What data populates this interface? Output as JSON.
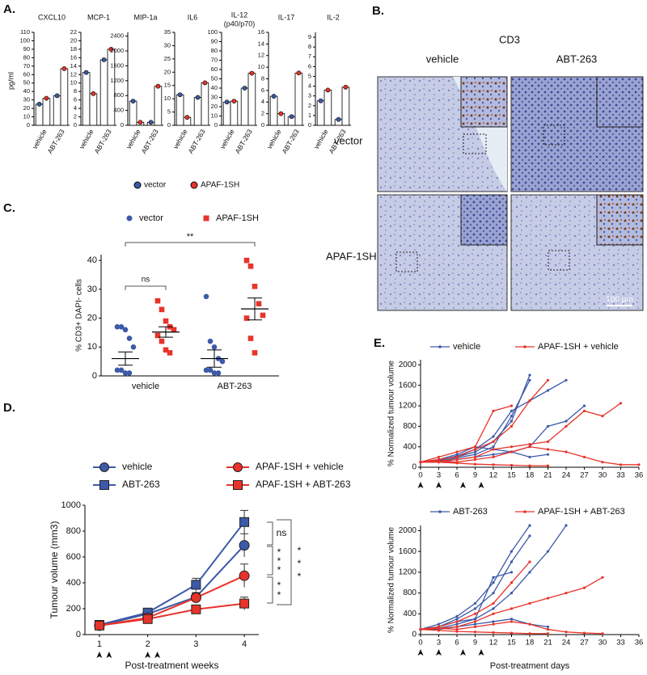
{
  "panel_a": {
    "label": "A.",
    "y_label": "pg/ml",
    "legend": [
      {
        "name": "vector",
        "color": "#3c5aa8"
      },
      {
        "name": "APAF-1SH",
        "color": "#e8332a"
      }
    ]
  },
  "panel_b": {
    "label": "B.",
    "title": "CD3",
    "columns": [
      "vehicle",
      "ABT-263"
    ],
    "rows": [
      "vector",
      "APAF-1SH"
    ],
    "scale_bar": "100 µm"
  },
  "chart_data": [
    {
      "type": "bar",
      "title": "CXCL10",
      "categories": [
        "vehicle",
        "ABT-263"
      ],
      "ylim": [
        0,
        110
      ],
      "yticks": [
        0,
        10,
        20,
        30,
        40,
        50,
        60,
        70,
        80,
        90,
        100,
        110
      ],
      "series": [
        {
          "color": "#3c5aa8",
          "values": [
            25,
            35
          ]
        },
        {
          "color": "#e8332a",
          "values": [
            32,
            67
          ]
        }
      ]
    },
    {
      "type": "bar",
      "title": "MCP-1",
      "categories": [
        "vehicle",
        "ABT-263"
      ],
      "ylim": [
        0,
        22
      ],
      "yticks": [
        0,
        2,
        4,
        6,
        8,
        10,
        12,
        14,
        16,
        18,
        20,
        22
      ],
      "series": [
        {
          "color": "#3c5aa8",
          "values": [
            12.5,
            15.5
          ]
        },
        {
          "color": "#e8332a",
          "values": [
            7.5,
            18
          ]
        }
      ]
    },
    {
      "type": "bar",
      "title": "MIP-1a",
      "categories": [
        "vehicle",
        "ABT-263"
      ],
      "ylim": [
        0,
        2500
      ],
      "yticks": [
        0,
        400,
        800,
        1200,
        1600,
        2000,
        2400
      ],
      "series": [
        {
          "color": "#3c5aa8",
          "values": [
            650,
            80
          ]
        },
        {
          "color": "#e8332a",
          "values": [
            80,
            1050
          ]
        }
      ]
    },
    {
      "type": "bar",
      "title": "IL6",
      "categories": [
        "vehicle",
        "ABT-263"
      ],
      "ylim": [
        0,
        35
      ],
      "yticks": [
        0,
        5,
        10,
        15,
        20,
        25,
        30,
        35
      ],
      "series": [
        {
          "color": "#3c5aa8",
          "values": [
            11.5,
            10.5
          ]
        },
        {
          "color": "#e8332a",
          "values": [
            3,
            16
          ]
        }
      ]
    },
    {
      "type": "bar",
      "title": "IL-12",
      "subtitle": "(p40/p70)",
      "categories": [
        "vehicle",
        "ABT-263"
      ],
      "ylim": [
        0,
        100
      ],
      "yticks": [
        0,
        10,
        20,
        30,
        40,
        50,
        60,
        70,
        80,
        90,
        100
      ],
      "series": [
        {
          "color": "#3c5aa8",
          "values": [
            25,
            40
          ]
        },
        {
          "color": "#e8332a",
          "values": [
            26,
            56
          ]
        }
      ]
    },
    {
      "type": "bar",
      "title": "IL-17",
      "categories": [
        "vehicle",
        "ABT-263"
      ],
      "ylim": [
        0,
        16
      ],
      "yticks": [
        0,
        2,
        4,
        6,
        8,
        10,
        12,
        14,
        16
      ],
      "series": [
        {
          "color": "#3c5aa8",
          "values": [
            5,
            1.5
          ]
        },
        {
          "color": "#e8332a",
          "values": [
            2,
            9
          ]
        }
      ]
    },
    {
      "type": "bar",
      "title": "IL-2",
      "categories": [
        "vehicle",
        "ABT-263"
      ],
      "ylim": [
        0,
        9.5
      ],
      "yticks": [
        0,
        1,
        2,
        3,
        4,
        5,
        6,
        7,
        8,
        9
      ],
      "series": [
        {
          "color": "#3c5aa8",
          "values": [
            2.5,
            0.6
          ]
        },
        {
          "color": "#e8332a",
          "values": [
            3.6,
            3.9
          ]
        }
      ]
    },
    {
      "type": "strip",
      "panel": "C.",
      "y_label": "% CD3+ DAPI- cells",
      "categories": [
        "vehicle",
        "ABT-263"
      ],
      "ylim": [
        0,
        42
      ],
      "yticks": [
        0,
        10,
        20,
        30,
        40
      ],
      "annotations": [
        "ns",
        "**"
      ],
      "series": [
        {
          "name": "vector",
          "color": "#3c5aa8",
          "marker": "circle",
          "values": [
            [
              17,
              17,
              16,
              13,
              10,
              2,
              2,
              1,
              1
            ],
            [
              27.5,
              12,
              10,
              6,
              5,
              2,
              2,
              1,
              1
            ]
          ],
          "mean": [
            6,
            6
          ],
          "sem": [
            2.3,
            3
          ]
        },
        {
          "name": "APAF-1SH",
          "color": "#e8332a",
          "marker": "square",
          "values": [
            [
              26,
              23,
              19,
              17,
              16,
              14,
              12,
              9,
              8
            ],
            [
              40,
              38,
              31,
              25,
              21,
              20,
              13,
              8
            ]
          ],
          "mean": [
            15.2,
            23.2
          ],
          "sem": [
            1.8,
            3.8
          ]
        }
      ]
    },
    {
      "type": "line",
      "panel": "D.",
      "y_label": "Tumour volume (mm3)",
      "x_label": "Post-treatment weeks",
      "x": [
        1,
        2,
        3,
        4
      ],
      "xlim": [
        0.7,
        4.3
      ],
      "xticks": [
        1,
        2,
        3,
        4
      ],
      "ylim": [
        0,
        1000
      ],
      "yticks": [
        0,
        200,
        400,
        600,
        800,
        1000
      ],
      "treatment": [
        1,
        1.2,
        2,
        2.2
      ],
      "annotations": [
        "ns",
        "*",
        "*",
        "*",
        "*",
        "*",
        "*",
        "*",
        "*"
      ],
      "series": [
        {
          "name": "vehicle",
          "color": "#3c5aa8",
          "marker": "circle",
          "values": [
            70,
            160,
            290,
            690
          ],
          "errors": [
            5,
            15,
            30,
            90
          ]
        },
        {
          "name": "ABT-263",
          "color": "#3c5aa8",
          "marker": "square",
          "values": [
            75,
            170,
            385,
            870
          ],
          "errors": [
            8,
            15,
            50,
            90
          ]
        },
        {
          "name": "APAF-1SH + vehicle",
          "color": "#e8332a",
          "marker": "circle",
          "values": [
            70,
            130,
            285,
            455
          ],
          "errors": [
            5,
            15,
            40,
            90
          ]
        },
        {
          "name": "APAF-1SH + ABT-263",
          "color": "#e8332a",
          "marker": "square",
          "values": [
            70,
            120,
            195,
            240
          ],
          "errors": [
            5,
            15,
            20,
            50
          ]
        }
      ]
    },
    {
      "type": "spaghetti",
      "panel": "E.",
      "y_label": "% Normalized tumour volume",
      "x": [
        0,
        3,
        6,
        9,
        12,
        15,
        18,
        21,
        24,
        27,
        30,
        33,
        36
      ],
      "xlim": [
        0,
        36
      ],
      "xticks": [
        0,
        3,
        6,
        9,
        12,
        15,
        18,
        21,
        24,
        27,
        30,
        33,
        36
      ],
      "ylim": [
        0,
        2100
      ],
      "yticks": [
        0,
        400,
        800,
        1200,
        1600,
        2000
      ],
      "treatment": [
        0,
        3,
        7,
        10
      ],
      "series": [
        {
          "name": "vehicle",
          "color": "#3c5aa8",
          "lines": [
            [
              100,
              150,
              200,
              300,
              500,
              900,
              1800,
              null,
              null,
              null,
              null,
              null,
              null
            ],
            [
              100,
              120,
              180,
              250,
              400,
              1000,
              1700,
              null,
              null,
              null,
              null,
              null,
              null
            ],
            [
              100,
              130,
              220,
              350,
              600,
              1100,
              1300,
              1500,
              1700,
              null,
              null,
              null,
              null
            ],
            [
              100,
              100,
              150,
              200,
              250,
              300,
              400,
              800,
              900,
              1200,
              null,
              null,
              null
            ],
            [
              100,
              150,
              250,
              400,
              350,
              300,
              200,
              250,
              null,
              null,
              null,
              null,
              null
            ]
          ]
        },
        {
          "name": "APAF-1SH + vehicle",
          "color": "#e8332a",
          "lines": [
            [
              100,
              200,
              300,
              400,
              1100,
              1200,
              null,
              null,
              null,
              null,
              null,
              null,
              null
            ],
            [
              100,
              150,
              200,
              350,
              500,
              800,
              1300,
              1700,
              null,
              null,
              null,
              null,
              null
            ],
            [
              100,
              120,
              150,
              200,
              350,
              400,
              450,
              500,
              800,
              1100,
              1000,
              1250,
              null
            ],
            [
              100,
              120,
              100,
              150,
              200,
              300,
              400,
              350,
              300,
              200,
              100,
              50,
              50
            ],
            [
              100,
              100,
              80,
              60,
              50,
              40,
              30,
              30,
              null,
              null,
              null,
              null,
              null
            ]
          ]
        }
      ]
    },
    {
      "type": "spaghetti",
      "y_label": "% Normalized tumour volume",
      "x_label": "Post-treatment days",
      "x": [
        0,
        3,
        6,
        9,
        12,
        15,
        18,
        21,
        24,
        27,
        30,
        33,
        36
      ],
      "xlim": [
        0,
        36
      ],
      "xticks": [
        0,
        3,
        6,
        9,
        12,
        15,
        18,
        21,
        24,
        27,
        30,
        33,
        36
      ],
      "ylim": [
        0,
        2100
      ],
      "yticks": [
        0,
        400,
        800,
        1200,
        1600,
        2000
      ],
      "treatment": [
        0,
        3,
        7,
        10
      ],
      "series": [
        {
          "name": "ABT-263",
          "color": "#3c5aa8",
          "lines": [
            [
              100,
              200,
              350,
              600,
              1000,
              1600,
              2100,
              null,
              null,
              null,
              null,
              null,
              null
            ],
            [
              100,
              150,
              300,
              500,
              800,
              1400,
              1900,
              null,
              null,
              null,
              null,
              null,
              null
            ],
            [
              100,
              120,
              200,
              300,
              500,
              800,
              1200,
              1600,
              2100,
              null,
              null,
              null,
              null
            ],
            [
              100,
              150,
              250,
              300,
              1100,
              1200,
              null,
              null,
              null,
              null,
              null,
              null,
              null
            ],
            [
              100,
              100,
              150,
              200,
              250,
              300,
              200,
              150,
              null,
              null,
              null,
              null,
              null
            ]
          ]
        },
        {
          "name": "APAF-1SH + ABT-263",
          "color": "#e8332a",
          "lines": [
            [
              100,
              150,
              250,
              400,
              600,
              1000,
              1400,
              null,
              null,
              null,
              null,
              null,
              null
            ],
            [
              100,
              120,
              150,
              250,
              400,
              500,
              600,
              700,
              800,
              900,
              1100,
              null,
              null
            ],
            [
              100,
              120,
              100,
              150,
              200,
              250,
              200,
              100,
              50,
              30,
              20,
              null,
              null
            ],
            [
              100,
              80,
              60,
              50,
              40,
              30,
              20,
              20,
              null,
              null,
              null,
              null,
              null
            ]
          ]
        }
      ]
    }
  ]
}
